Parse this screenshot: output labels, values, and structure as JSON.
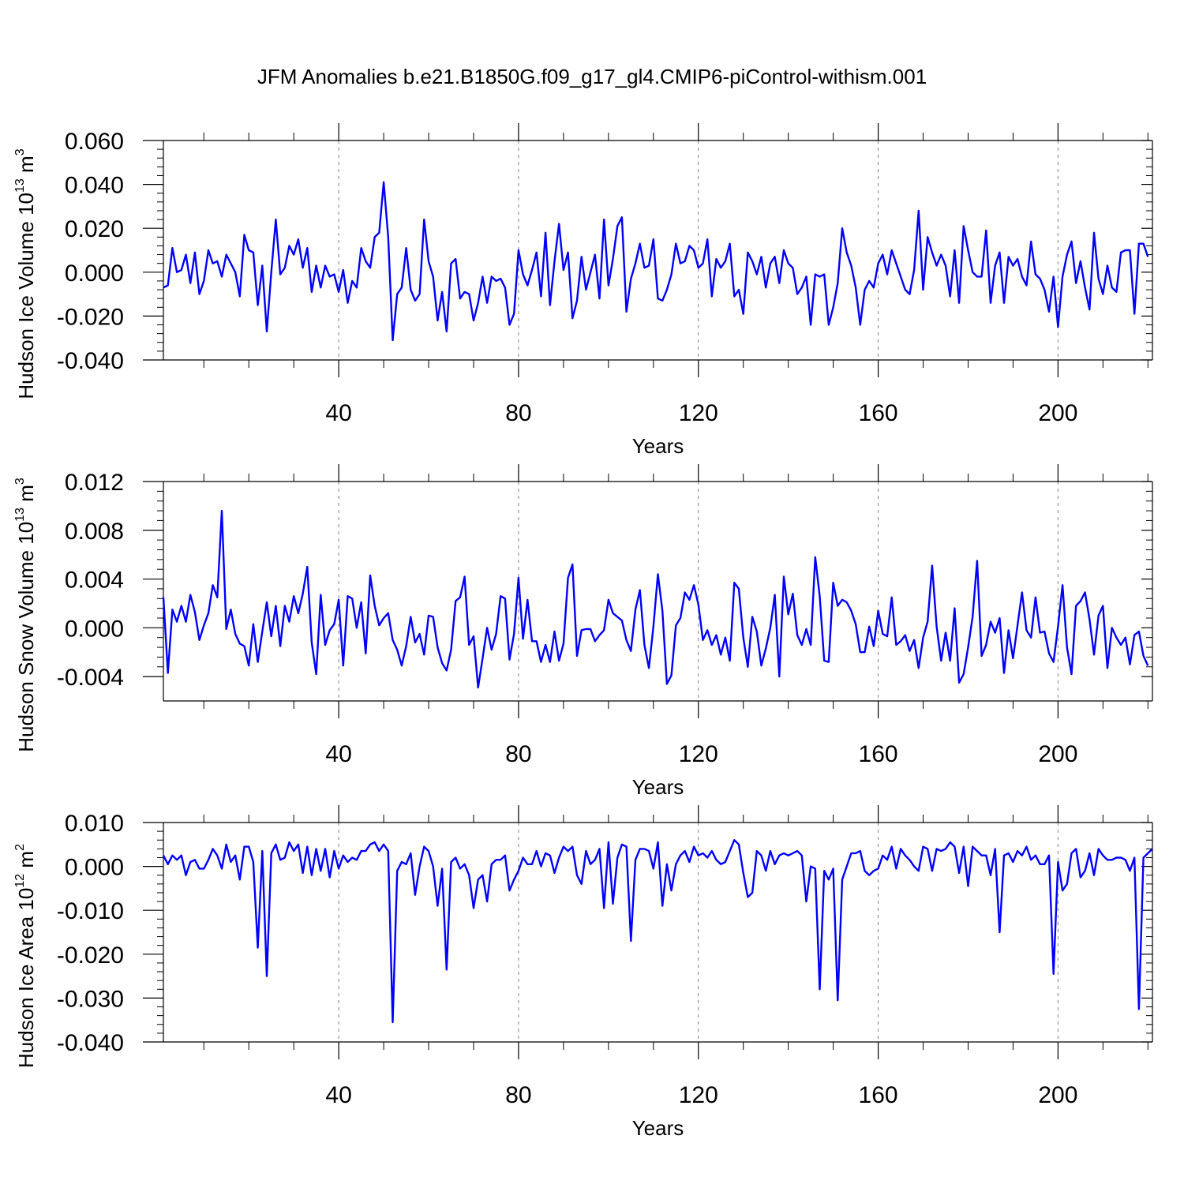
{
  "title": "JFM Anomalies b.e21.B1850G.f09_g17_gl4.CMIP6-piControl-withism.001",
  "colors": {
    "line": "#0000ff",
    "grid": "#808080",
    "axis": "#000000"
  },
  "chart_data": [
    {
      "type": "line",
      "ylabel": {
        "main": "Hudson Ice Volume 10",
        "exp": "13",
        "unit": " m",
        "unit_exp": "3"
      },
      "xlabel": "Years",
      "xlim": [
        1,
        221
      ],
      "ylim": [
        -0.04,
        0.06
      ],
      "xticks": [
        40,
        80,
        120,
        160,
        200
      ],
      "yticks": [
        -0.04,
        -0.02,
        0.0,
        0.02,
        0.04,
        0.06
      ],
      "ytick_labels": [
        "-0.040",
        "-0.020",
        "0.000",
        "0.020",
        "0.040",
        "0.060"
      ],
      "grid": "vertical dashed at x ticks",
      "series": [
        {
          "values": [
            -0.007,
            -0.006,
            0.011,
            0.0,
            0.001,
            0.008,
            -0.005,
            0.009,
            -0.01,
            -0.004,
            0.01,
            0.004,
            0.005,
            -0.002,
            0.008,
            0.004,
            0.0,
            -0.011,
            0.017,
            0.01,
            0.009,
            -0.015,
            0.003,
            -0.027,
            0.0,
            0.024,
            -0.001,
            0.002,
            0.012,
            0.008,
            0.015,
            0.002,
            0.011,
            -0.009,
            0.003,
            -0.007,
            0.003,
            -0.002,
            -0.001,
            -0.009,
            0.001,
            -0.014,
            -0.004,
            -0.007,
            0.011,
            0.005,
            0.002,
            0.016,
            0.018,
            0.041,
            0.016,
            -0.031,
            -0.01,
            -0.007,
            0.011,
            -0.008,
            -0.013,
            -0.01,
            0.024,
            0.005,
            -0.002,
            -0.022,
            -0.009,
            -0.027,
            0.004,
            0.006,
            -0.012,
            -0.009,
            -0.01,
            -0.022,
            -0.014,
            -0.002,
            -0.014,
            -0.002,
            -0.004,
            -0.003,
            -0.007,
            -0.024,
            -0.019,
            0.01,
            -0.001,
            -0.006,
            0.001,
            0.009,
            -0.011,
            0.018,
            -0.015,
            0.005,
            0.022,
            0.001,
            0.009,
            -0.021,
            -0.013,
            0.007,
            -0.008,
            0.0,
            0.008,
            -0.012,
            0.024,
            -0.006,
            0.006,
            0.021,
            0.025,
            -0.018,
            -0.003,
            0.004,
            0.013,
            0.002,
            0.003,
            0.015,
            -0.012,
            -0.013,
            -0.008,
            -0.001,
            0.013,
            0.004,
            0.005,
            0.012,
            0.01,
            0.002,
            0.004,
            0.015,
            -0.011,
            0.006,
            0.002,
            0.005,
            0.013,
            -0.011,
            -0.008,
            -0.019,
            0.009,
            0.005,
            -0.001,
            0.007,
            -0.007,
            0.004,
            0.007,
            -0.005,
            0.01,
            0.004,
            0.002,
            -0.01,
            -0.007,
            -0.002,
            -0.024,
            -0.001,
            -0.002,
            -0.001,
            -0.024,
            -0.016,
            -0.005,
            0.02,
            0.009,
            0.003,
            -0.007,
            -0.024,
            -0.008,
            -0.004,
            -0.007,
            0.004,
            0.008,
            -0.001,
            0.01,
            0.004,
            -0.002,
            -0.008,
            -0.01,
            0.001,
            0.028,
            -0.008,
            0.016,
            0.009,
            0.003,
            0.008,
            0.003,
            -0.011,
            0.01,
            -0.014,
            0.021,
            0.01,
            0.0,
            -0.002,
            -0.002,
            0.019,
            -0.014,
            0.003,
            0.009,
            -0.014,
            0.007,
            0.003,
            0.006,
            -0.002,
            -0.006,
            0.014,
            -0.001,
            -0.003,
            -0.008,
            -0.018,
            -0.002,
            -0.025,
            -0.002,
            0.008,
            0.014,
            -0.005,
            0.005,
            -0.007,
            -0.017,
            0.018,
            -0.003,
            -0.01,
            0.003,
            -0.007,
            -0.009,
            0.009,
            0.01,
            0.01,
            -0.019,
            0.013,
            0.013,
            0.007
          ]
        }
      ]
    },
    {
      "type": "line",
      "ylabel": {
        "main": "Hudson Snow Volume 10",
        "exp": "13",
        "unit": " m",
        "unit_exp": "3"
      },
      "xlabel": "Years",
      "xlim": [
        1,
        221
      ],
      "ylim": [
        -0.006,
        0.012
      ],
      "xticks": [
        40,
        80,
        120,
        160,
        200
      ],
      "yticks": [
        -0.004,
        0.0,
        0.004,
        0.008,
        0.012
      ],
      "ytick_labels": [
        "-0.004",
        "0.000",
        "0.004",
        "0.008",
        "0.012"
      ],
      "grid": "vertical dashed at x ticks",
      "series": [
        {
          "values": [
            0.0025,
            -0.0037,
            0.0015,
            0.0005,
            0.0018,
            0.0005,
            0.0027,
            0.0013,
            -0.001,
            0.0002,
            0.0012,
            0.0035,
            0.0025,
            0.0096,
            -0.0001,
            0.0015,
            -0.0005,
            -0.0013,
            -0.0015,
            -0.0031,
            0.0003,
            -0.0028,
            -0.0003,
            0.0021,
            -0.0007,
            0.0018,
            -0.0015,
            0.0018,
            0.0005,
            0.0026,
            0.0012,
            0.0028,
            0.005,
            -0.0012,
            -0.0038,
            0.0027,
            -0.0014,
            -0.0002,
            0.0003,
            0.0023,
            -0.0031,
            0.0026,
            0.0024,
            0.0,
            0.0021,
            -0.0021,
            0.0043,
            0.0018,
            0.0002,
            0.0008,
            0.0012,
            -0.001,
            -0.0018,
            -0.0031,
            -0.0015,
            0.0009,
            -0.0012,
            -0.0005,
            -0.0022,
            0.001,
            0.0009,
            -0.0016,
            -0.0029,
            -0.0035,
            -0.0018,
            0.0022,
            0.0025,
            0.0042,
            -0.0014,
            -0.0007,
            -0.0049,
            -0.0025,
            0.0,
            -0.0018,
            -0.0005,
            0.0026,
            0.0024,
            -0.0026,
            -0.0005,
            0.0041,
            -0.0009,
            0.0023,
            -0.0011,
            -0.0011,
            -0.0028,
            -0.0014,
            -0.0028,
            -0.0003,
            -0.0027,
            -0.0013,
            0.0041,
            0.0052,
            -0.0023,
            -0.0002,
            -0.0001,
            -0.0001,
            -0.0011,
            -0.0006,
            -0.0002,
            0.0023,
            0.0012,
            0.0009,
            0.0006,
            -0.001,
            -0.0019,
            0.0015,
            0.0031,
            -0.0014,
            -0.0033,
            0.0001,
            0.0044,
            0.0014,
            -0.0046,
            -0.0039,
            0.0002,
            0.0008,
            0.0029,
            0.0023,
            0.0035,
            0.0019,
            -0.001,
            -0.0002,
            -0.0014,
            -0.0006,
            -0.0022,
            -0.0008,
            -0.0027,
            0.0037,
            0.0032,
            -0.0008,
            -0.0032,
            0.0009,
            -0.0003,
            -0.0031,
            -0.0017,
            0.0,
            0.0027,
            -0.004,
            0.0042,
            0.0011,
            0.0028,
            -0.0006,
            -0.0014,
            -0.0001,
            -0.0014,
            0.0058,
            0.0026,
            -0.0027,
            -0.0028,
            0.0037,
            0.0018,
            0.0023,
            0.0021,
            0.0014,
            0.0003,
            -0.002,
            -0.002,
            0.0001,
            -0.0015,
            0.0014,
            -0.0005,
            -0.0007,
            0.0025,
            -0.0014,
            -0.0011,
            -0.0006,
            -0.0019,
            -0.001,
            -0.0033,
            -0.0008,
            0.0005,
            0.0051,
            0.0001,
            -0.0027,
            -0.0004,
            -0.0027,
            0.0016,
            -0.0045,
            -0.0038,
            -0.0016,
            0.0009,
            0.0055,
            -0.0023,
            -0.0014,
            0.0005,
            -0.0004,
            0.0008,
            -0.0037,
            -0.0002,
            -0.0025,
            0.0002,
            0.0029,
            -0.0002,
            -0.0008,
            0.0025,
            -0.0004,
            -0.0003,
            -0.0021,
            -0.0028,
            0.0001,
            0.0035,
            -0.0016,
            -0.0038,
            0.0018,
            0.0022,
            0.0029,
            0.0007,
            -0.0022,
            0.001,
            0.0018,
            -0.0033,
            0.0,
            -0.0008,
            -0.0014,
            -0.0008,
            -0.003,
            -0.0006,
            -0.0003,
            -0.0023,
            -0.0031
          ]
        }
      ]
    },
    {
      "type": "line",
      "ylabel": {
        "main": "Hudson Ice Area 10",
        "exp": "12",
        "unit": " m",
        "unit_exp": "2"
      },
      "xlabel": "Years",
      "xlim": [
        1,
        221
      ],
      "ylim": [
        -0.04,
        0.01
      ],
      "xticks": [
        40,
        80,
        120,
        160,
        200
      ],
      "yticks": [
        -0.04,
        -0.03,
        -0.02,
        -0.01,
        0.0,
        0.01
      ],
      "ytick_labels": [
        "-0.040",
        "-0.030",
        "-0.020",
        "-0.010",
        "0.000",
        "0.010"
      ],
      "grid": "vertical dashed at x ticks",
      "series": [
        {
          "values": [
            0.0025,
            0.0005,
            0.0025,
            0.0015,
            0.0025,
            -0.002,
            0.001,
            0.0015,
            -0.0005,
            -0.0005,
            0.0015,
            0.004,
            0.0025,
            -0.0005,
            0.005,
            0.001,
            0.0025,
            -0.003,
            0.0045,
            0.0045,
            0.001,
            -0.0185,
            0.0035,
            -0.025,
            0.003,
            0.005,
            0.0015,
            0.002,
            0.0055,
            0.0035,
            0.005,
            -0.0015,
            0.0045,
            -0.002,
            0.004,
            -0.001,
            0.004,
            -0.0025,
            0.0035,
            -0.0005,
            0.0025,
            0.001,
            0.002,
            0.0015,
            0.0035,
            0.0035,
            0.005,
            0.0055,
            0.0035,
            0.005,
            0.0035,
            -0.0355,
            -0.001,
            0.001,
            0.0005,
            0.003,
            -0.0065,
            0.0,
            0.0045,
            0.0035,
            0.0,
            -0.009,
            -0.0005,
            -0.0235,
            0.001,
            0.002,
            -0.0005,
            0.0005,
            -0.002,
            -0.0095,
            -0.003,
            -0.002,
            -0.008,
            0.0005,
            0.0015,
            0.0015,
            0.0025,
            -0.0055,
            -0.003,
            -0.001,
            0.002,
            0.0005,
            0.0005,
            0.0035,
            0.0,
            0.003,
            0.0025,
            -0.0015,
            0.002,
            0.0045,
            0.0035,
            0.0045,
            -0.002,
            -0.004,
            0.0035,
            0.0005,
            0.0015,
            0.004,
            -0.0095,
            0.0055,
            -0.0085,
            0.002,
            0.005,
            0.0045,
            -0.017,
            0.0015,
            0.004,
            0.004,
            0.0035,
            -0.0005,
            0.0055,
            -0.009,
            0.0005,
            -0.0055,
            0.0005,
            0.0025,
            0.0035,
            0.001,
            0.0045,
            0.0025,
            0.003,
            0.002,
            0.0035,
            0.0015,
            0.0005,
            0.001,
            0.0035,
            0.006,
            0.005,
            -0.0015,
            -0.007,
            -0.006,
            0.0035,
            0.0025,
            -0.001,
            0.0035,
            0.0005,
            0.0025,
            0.003,
            0.0025,
            0.003,
            0.0035,
            0.0025,
            -0.008,
            0.0,
            -0.0005,
            -0.028,
            -0.001,
            -0.003,
            -0.0005,
            -0.0305,
            -0.003,
            0.0,
            0.003,
            0.003,
            0.0035,
            -0.001,
            -0.002,
            -0.001,
            -0.0005,
            0.0025,
            0.0015,
            0.0045,
            -0.0005,
            0.004,
            0.0025,
            0.0015,
            0.0,
            -0.001,
            0.0045,
            0.004,
            -0.001,
            0.004,
            0.0035,
            0.004,
            0.0055,
            0.0045,
            -0.0015,
            0.0045,
            -0.0045,
            0.0045,
            0.0035,
            0.0025,
            0.0025,
            -0.002,
            0.004,
            -0.015,
            0.0025,
            0.003,
            0.001,
            0.0035,
            0.0025,
            0.0045,
            0.0015,
            0.0025,
            0.0005,
            0.0005,
            0.0025,
            -0.0245,
            0.001,
            -0.0055,
            -0.004,
            0.003,
            0.004,
            -0.0025,
            -0.001,
            0.003,
            -0.002,
            0.004,
            0.0025,
            0.0015,
            0.0015,
            0.002,
            0.002,
            0.0015,
            -0.001,
            0.002,
            -0.0325,
            0.002,
            0.003,
            0.004
          ]
        }
      ]
    }
  ]
}
